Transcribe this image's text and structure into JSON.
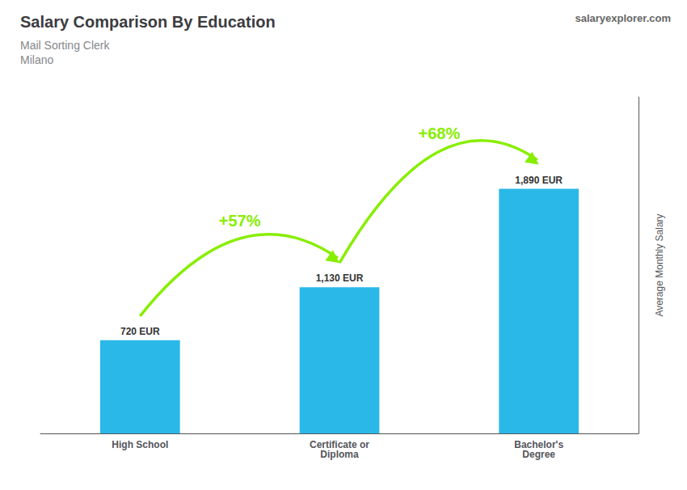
{
  "chart_data": {
    "type": "bar",
    "title": "Salary Comparison By Education",
    "subtitle": "Mail Sorting Clerk\nMilano",
    "categories": [
      "High School",
      "Certificate or\nDiploma",
      "Bachelor's\nDegree"
    ],
    "values": [
      720,
      1130,
      1890
    ],
    "value_labels": [
      "720 EUR",
      "1,130 EUR",
      "1,890 EUR"
    ],
    "data_labels": true,
    "color": "#29b8e8",
    "ylabel": "Average Monthly Salary",
    "ylim": [
      0,
      2600
    ],
    "tick_labels": "x",
    "grid": false,
    "annotations": [
      {
        "text": "+57%",
        "from": "High School",
        "to": "Certificate or\nDiploma",
        "color": "#88ee00"
      },
      {
        "text": "+68%",
        "from": "Certificate or\nDiploma",
        "to": "Bachelor's\nDegree",
        "color": "#88ee00"
      },
      {
        "text": "salaryexplorer.com"
      }
    ]
  }
}
